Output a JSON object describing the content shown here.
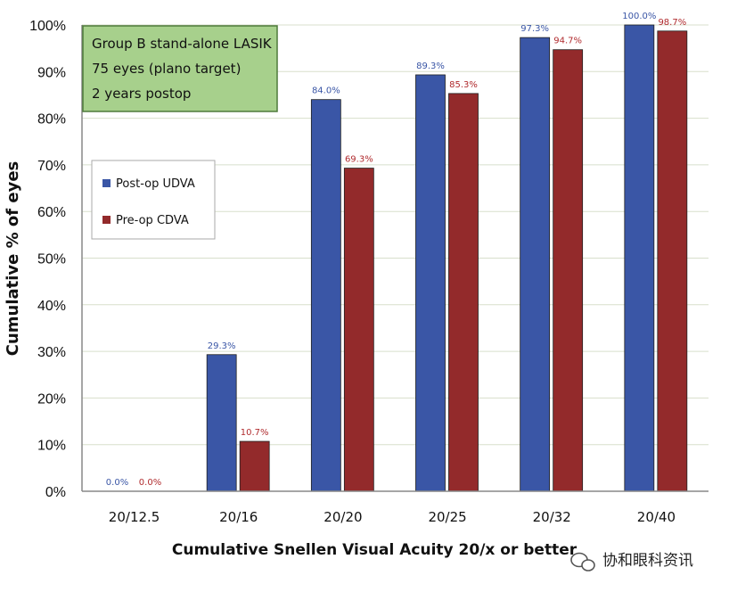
{
  "chart_data": {
    "type": "bar",
    "title": "",
    "xlabel": "Cumulative Snellen Visual Acuity 20/x or better",
    "ylabel": "Cumulative % of eyes",
    "ylim": [
      0,
      100
    ],
    "yticks": [
      0,
      10,
      20,
      30,
      40,
      50,
      60,
      70,
      80,
      90,
      100
    ],
    "ytick_suffix": "%",
    "grid": true,
    "categories": [
      "20/12.5",
      "20/16",
      "20/20",
      "20/25",
      "20/32",
      "20/40"
    ],
    "series": [
      {
        "name": "Post-op UDVA",
        "color": "#3a56a6",
        "values": [
          0.0,
          29.3,
          84.0,
          89.3,
          97.3,
          100.0
        ],
        "labels": [
          "0.0%",
          "29.3%",
          "84.0%",
          "89.3%",
          "97.3%",
          "100.0%"
        ],
        "label_color": "#3a56a6"
      },
      {
        "name": "Pre-op CDVA",
        "color": "#932a2b",
        "values": [
          0.0,
          10.7,
          69.3,
          85.3,
          94.7,
          98.7
        ],
        "labels": [
          "0.0%",
          "10.7%",
          "69.3%",
          "85.3%",
          "94.7%",
          "98.7%"
        ],
        "label_color": "#b02b2e"
      }
    ],
    "annotation": {
      "lines": [
        "Group B stand-alone LASIK",
        "75 eyes (plano target)",
        "2 years postop"
      ],
      "background": "#a7d08c",
      "border": "#4f7a3b"
    },
    "legend": {
      "placement": "left",
      "entries": [
        "Post-op UDVA",
        "Pre-op CDVA"
      ]
    }
  },
  "watermark": {
    "text": "协和眼科资讯",
    "icon": "wechat-icon"
  }
}
